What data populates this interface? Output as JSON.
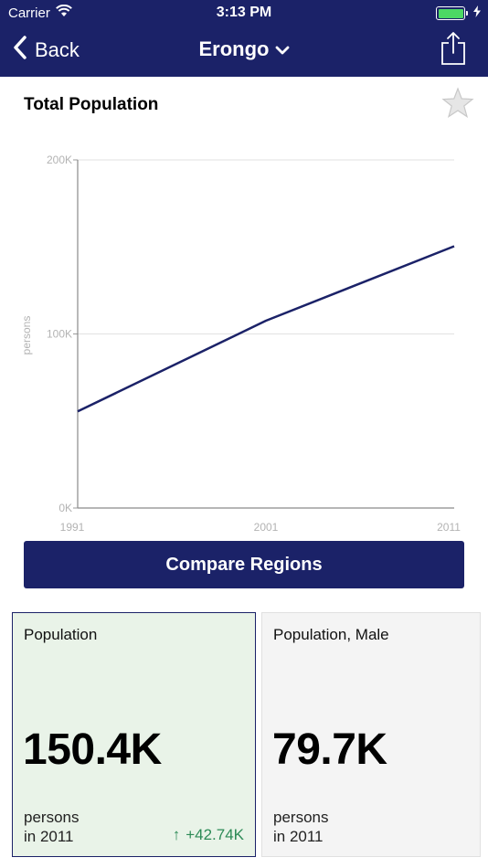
{
  "status_bar": {
    "carrier": "Carrier",
    "time": "3:13 PM",
    "battery_level": 1.0
  },
  "nav": {
    "back_label": "Back",
    "title": "Erongo"
  },
  "section": {
    "title": "Total Population"
  },
  "chart_data": {
    "type": "line",
    "x": [
      1991,
      2001,
      2011
    ],
    "series": [
      {
        "values": [
          55.5,
          107.6,
          150.4
        ],
        "color": "#1b2268"
      }
    ],
    "x_tick_labels": [
      "1991",
      "2001",
      "2011"
    ],
    "y_ticks": [
      0,
      100,
      200
    ],
    "y_tick_labels": [
      "0K",
      "100K",
      "200K"
    ],
    "ylabel": "persons",
    "xlim": [
      1991,
      2011
    ],
    "ylim": [
      0,
      200
    ],
    "grid": true
  },
  "compare_button": {
    "label": "Compare Regions"
  },
  "cards": [
    {
      "name": "Population",
      "value": "150.4K",
      "unit_line1": "persons",
      "unit_line2": "in 2011",
      "change": "+42.74K",
      "change_arrow": "↑"
    },
    {
      "name": "Population, Male",
      "value": "79.7K",
      "unit_line1": "persons",
      "unit_line2": "in 2011"
    }
  ],
  "colors": {
    "brand": "#1b2268",
    "positive": "#2c8a56",
    "battery": "#4cd964"
  }
}
